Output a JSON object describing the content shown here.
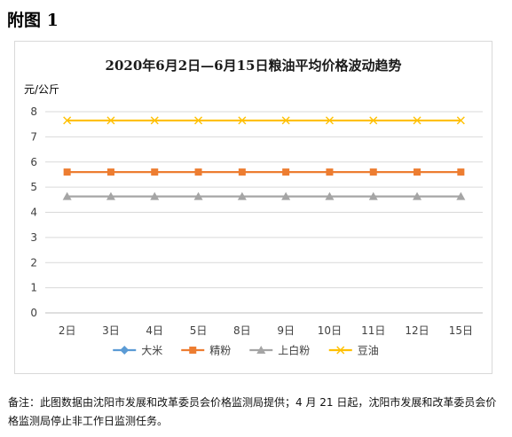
{
  "page": {
    "heading": "附图 1",
    "note": "备注：此图数据由沈阳市发展和改革委员会价格监测局提供；4 月 21 日起，沈阳市发展和改革委员会价格监测局停止非工作日监测任务。"
  },
  "chart_data": {
    "type": "line",
    "title": "2020年6月2日—6月15日粮油平均价格波动趋势",
    "ylabel": "元/公斤",
    "xlabel": "",
    "ylim": [
      0,
      8
    ],
    "yticks": [
      "0",
      "1",
      "2",
      "3",
      "4",
      "5",
      "6",
      "7",
      "8"
    ],
    "grid": true,
    "legend_position": "bottom",
    "categories": [
      "2日",
      "3日",
      "4日",
      "5日",
      "8日",
      "9日",
      "10日",
      "11日",
      "12日",
      "15日"
    ],
    "series": [
      {
        "name": "大米",
        "color": "#5b9bd5",
        "marker": "diamond",
        "values": [
          null,
          null,
          null,
          null,
          null,
          null,
          null,
          null,
          null,
          null
        ]
      },
      {
        "name": "精粉",
        "color": "#ed7d31",
        "marker": "square",
        "values": [
          5.6,
          5.6,
          5.6,
          5.6,
          5.6,
          5.6,
          5.6,
          5.6,
          5.6,
          5.6
        ]
      },
      {
        "name": "上白粉",
        "color": "#a5a5a5",
        "marker": "triangle",
        "values": [
          4.63,
          4.63,
          4.63,
          4.63,
          4.63,
          4.63,
          4.63,
          4.63,
          4.63,
          4.63
        ]
      },
      {
        "name": "豆油",
        "color": "#ffc000",
        "marker": "x",
        "values": [
          7.65,
          7.65,
          7.65,
          7.65,
          7.65,
          7.65,
          7.65,
          7.65,
          7.65,
          7.65
        ]
      }
    ]
  }
}
